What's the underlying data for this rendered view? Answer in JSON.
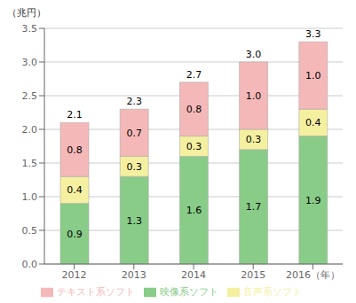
{
  "chart_data": {
    "type": "bar",
    "stacked": true,
    "data_labels": true,
    "grid": true,
    "legend": "bottom",
    "ylabel": "（兆円）",
    "categories": [
      "2012",
      "2013",
      "2014",
      "2015",
      "2016（年）"
    ],
    "series": [
      {
        "name": "映像系ソフト",
        "color": "#88cc88",
        "values": [
          0.9,
          1.3,
          1.6,
          1.7,
          1.9
        ]
      },
      {
        "name": "音声系ソフト",
        "color": "#f5f0a0",
        "values": [
          0.4,
          0.3,
          0.3,
          0.3,
          0.4
        ]
      },
      {
        "name": "テキスト系ソフト",
        "color": "#f5b8b8",
        "values": [
          0.8,
          0.7,
          0.8,
          1.0,
          1.0
        ],
        "value_labels": [
          "0.8",
          "0.7",
          "0.8",
          "1.0",
          "1.0"
        ]
      }
    ],
    "totals": {
      "values": [
        2.1,
        2.3,
        2.7,
        3.0,
        3.3
      ],
      "value_labels": [
        "2.1",
        "2.3",
        "2.7",
        "3.0",
        "3.3"
      ]
    },
    "ylim": [
      0,
      3.5
    ],
    "yticks": [
      {
        "value": 0,
        "label": "0.0"
      },
      0.5,
      {
        "value": 1,
        "label": "1.0"
      },
      1.5,
      {
        "value": 2,
        "label": "2.0"
      },
      2.5,
      {
        "value": 3,
        "label": "3.0"
      },
      3.5
    ]
  }
}
